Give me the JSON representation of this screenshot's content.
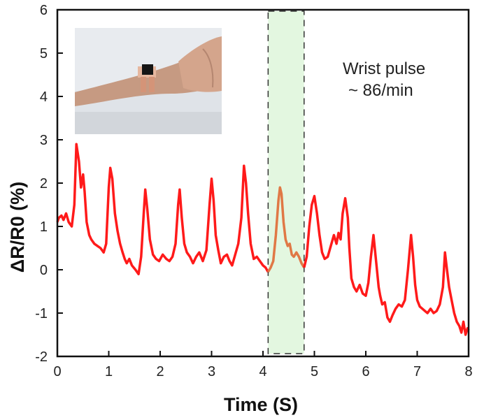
{
  "chart_data": {
    "type": "line",
    "title": "",
    "xlabel": "Time (S)",
    "ylabel": "ΔR/R0 (%)",
    "xlim": [
      0,
      8
    ],
    "ylim": [
      -2,
      6
    ],
    "xticks": [
      "0",
      "1",
      "2",
      "3",
      "4",
      "5",
      "6",
      "7",
      "8"
    ],
    "yticks": [
      "-2",
      "-1",
      "0",
      "1",
      "2",
      "3",
      "4",
      "5",
      "6"
    ],
    "grid": false,
    "annotation": [
      "Wrist pulse",
      "~ 86/min"
    ],
    "inset": "photo of sensor attached to wrist",
    "highlight_window": [
      4.1,
      4.8
    ],
    "series": [
      {
        "color": "#ff1a1a",
        "x": [
          0.0,
          0.03,
          0.08,
          0.12,
          0.17,
          0.22,
          0.28,
          0.33,
          0.37,
          0.42,
          0.46,
          0.5,
          0.53,
          0.57,
          0.62,
          0.66,
          0.72,
          0.78,
          0.84,
          0.9,
          0.95,
          1.0,
          1.03,
          1.07,
          1.12,
          1.17,
          1.22,
          1.27,
          1.31,
          1.35,
          1.4,
          1.45,
          1.52,
          1.58,
          1.63,
          1.68,
          1.71,
          1.75,
          1.8,
          1.86,
          1.92,
          1.98,
          2.05,
          2.12,
          2.18,
          2.24,
          2.3,
          2.35,
          2.38,
          2.42,
          2.47,
          2.52,
          2.58,
          2.64,
          2.7,
          2.76,
          2.83,
          2.9,
          2.96,
          3.0,
          3.04,
          3.08,
          3.13,
          3.18,
          3.24,
          3.3,
          3.35,
          3.4,
          3.46,
          3.52,
          3.58,
          3.63,
          3.67,
          3.71,
          3.76,
          3.82,
          3.88,
          3.94,
          4.0,
          4.05,
          4.1
        ],
        "y": [
          1.1,
          1.2,
          1.25,
          1.15,
          1.3,
          1.1,
          1.0,
          1.5,
          2.9,
          2.5,
          1.9,
          2.2,
          1.8,
          1.1,
          0.8,
          0.7,
          0.6,
          0.55,
          0.5,
          0.4,
          0.6,
          1.9,
          2.35,
          2.1,
          1.3,
          0.9,
          0.6,
          0.4,
          0.25,
          0.15,
          0.25,
          0.1,
          0.0,
          -0.1,
          0.3,
          1.3,
          1.85,
          1.4,
          0.7,
          0.35,
          0.25,
          0.2,
          0.35,
          0.25,
          0.2,
          0.3,
          0.6,
          1.5,
          1.85,
          1.2,
          0.6,
          0.4,
          0.3,
          0.15,
          0.3,
          0.4,
          0.2,
          0.45,
          1.5,
          2.1,
          1.6,
          0.8,
          0.45,
          0.15,
          0.3,
          0.35,
          0.2,
          0.1,
          0.35,
          0.6,
          1.2,
          2.4,
          2.0,
          1.3,
          0.6,
          0.25,
          0.3,
          0.2,
          0.1,
          0.05,
          -0.05
        ]
      },
      {
        "color": "#e07845",
        "x": [
          4.1,
          4.15,
          4.2,
          4.25,
          4.3,
          4.33,
          4.36,
          4.4,
          4.44,
          4.48,
          4.52,
          4.56,
          4.6,
          4.65,
          4.7,
          4.75,
          4.8
        ],
        "y": [
          -0.05,
          0.05,
          0.2,
          0.8,
          1.6,
          1.9,
          1.75,
          1.1,
          0.7,
          0.55,
          0.6,
          0.35,
          0.3,
          0.4,
          0.3,
          0.15,
          0.05
        ]
      },
      {
        "color": "#ff1a1a",
        "x": [
          4.8,
          4.85,
          4.9,
          4.95,
          5.0,
          5.05,
          5.1,
          5.15,
          5.2,
          5.26,
          5.32,
          5.38,
          5.43,
          5.47,
          5.51,
          5.55,
          5.6,
          5.65,
          5.68,
          5.72,
          5.77,
          5.82,
          5.88,
          5.94,
          6.0,
          6.05,
          6.1,
          6.15,
          6.2,
          6.25,
          6.28,
          6.32,
          6.37,
          6.42,
          6.47,
          6.52,
          6.58,
          6.64,
          6.7,
          6.76,
          6.82,
          6.88,
          6.92,
          6.96,
          7.0,
          7.05,
          7.1,
          7.15,
          7.2,
          7.26,
          7.32,
          7.38,
          7.44,
          7.5,
          7.54,
          7.58,
          7.62,
          7.67,
          7.72,
          7.77,
          7.82,
          7.86,
          7.9,
          7.94,
          7.98,
          8.0
        ],
        "y": [
          0.05,
          0.3,
          1.0,
          1.5,
          1.7,
          1.3,
          0.8,
          0.4,
          0.25,
          0.3,
          0.55,
          0.8,
          0.6,
          0.85,
          0.7,
          1.3,
          1.65,
          1.2,
          0.5,
          -0.2,
          -0.4,
          -0.5,
          -0.35,
          -0.55,
          -0.6,
          -0.3,
          0.3,
          0.8,
          0.2,
          -0.4,
          -0.6,
          -0.8,
          -0.75,
          -1.1,
          -1.2,
          -1.05,
          -0.9,
          -0.8,
          -0.85,
          -0.7,
          0.0,
          0.8,
          0.3,
          -0.35,
          -0.7,
          -0.85,
          -0.9,
          -0.95,
          -1.0,
          -0.9,
          -1.0,
          -0.95,
          -0.8,
          -0.4,
          0.4,
          0.0,
          -0.4,
          -0.7,
          -1.0,
          -1.2,
          -1.3,
          -1.45,
          -1.2,
          -1.5,
          -1.35,
          -1.4
        ]
      }
    ]
  }
}
